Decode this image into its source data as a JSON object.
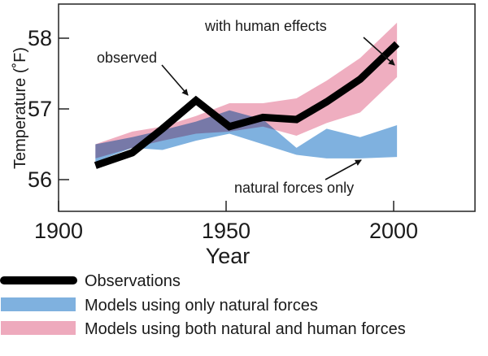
{
  "chart_data": {
    "type": "area",
    "xlabel": "Year",
    "ylabel": "Temperature (˚F)",
    "xlim": [
      1900,
      2024
    ],
    "ylim": [
      55.55,
      58.48
    ],
    "xticks": [
      "1900",
      "1950",
      "2000"
    ],
    "yticks": [
      "56",
      "57",
      "58"
    ],
    "grid": false,
    "legend_position": "bottom",
    "x": [
      1911,
      1922,
      1931,
      1941,
      1951,
      1961,
      1971,
      1980,
      1990,
      2001
    ],
    "series": [
      {
        "name": "Models using only natural forces",
        "kind": "band",
        "color": "#7fb1df",
        "upper": [
          56.5,
          56.6,
          56.7,
          56.82,
          56.98,
          56.85,
          56.45,
          56.72,
          56.6,
          56.77
        ],
        "lower": [
          56.25,
          56.45,
          56.42,
          56.55,
          56.65,
          56.5,
          56.35,
          56.3,
          56.3,
          56.32
        ]
      },
      {
        "name": "Models using both natural and human forces",
        "kind": "band",
        "color": "#eeaabd",
        "upper": [
          56.5,
          56.68,
          56.75,
          56.9,
          57.08,
          57.08,
          57.15,
          57.4,
          57.72,
          58.22
        ],
        "lower": [
          56.3,
          56.45,
          56.55,
          56.65,
          56.68,
          56.75,
          56.62,
          56.8,
          56.95,
          57.45
        ]
      },
      {
        "name": "Observations",
        "kind": "line",
        "color": "#000000",
        "values": [
          56.2,
          56.38,
          56.72,
          57.12,
          56.75,
          56.88,
          56.85,
          57.1,
          57.42,
          57.92
        ]
      }
    ],
    "annotations": {
      "human": "with human effects",
      "observed": "observed",
      "natural": "natural forces only"
    }
  }
}
